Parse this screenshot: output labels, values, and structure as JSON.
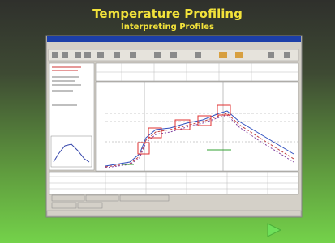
{
  "header": {
    "title": "Temperature Profiling",
    "subtitle": "Interpreting Profiles"
  }
}
